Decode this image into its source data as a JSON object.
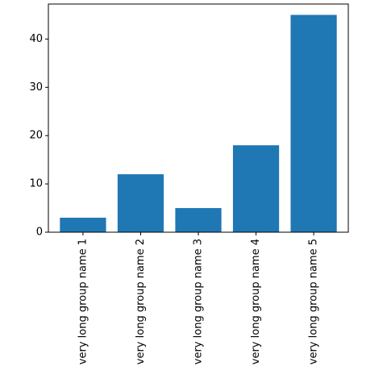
{
  "chart_data": {
    "type": "bar",
    "title": "",
    "xlabel": "",
    "ylabel": "",
    "categories": [
      "very long group name 1",
      "very long group name 2",
      "very long group name 3",
      "very long group name 4",
      "very long group name 5"
    ],
    "values": [
      3,
      12,
      5,
      18,
      45
    ],
    "ylim": [
      0,
      47.25
    ],
    "yticks": [
      0,
      10,
      20,
      30,
      40
    ],
    "grid": false,
    "legend": "none",
    "bar_color": "#1f77b4"
  }
}
